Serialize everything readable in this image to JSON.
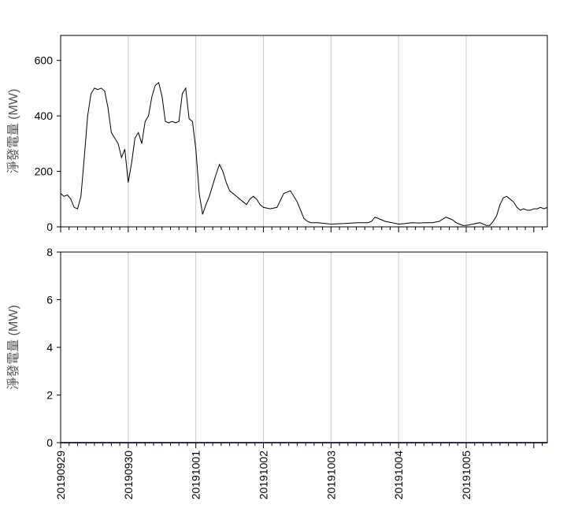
{
  "chart_data": [
    {
      "type": "line",
      "ylabel": "淨發電量 (MW)",
      "ylim": [
        0,
        690
      ],
      "yticks": [
        0,
        200,
        400,
        600
      ],
      "xlim": [
        0,
        7.2
      ],
      "xticks_major": [
        0,
        1,
        2,
        3,
        4,
        5,
        6
      ],
      "grid": "vertical",
      "series": [
        {
          "color": "#000000",
          "x": [
            0.0,
            0.05,
            0.1,
            0.15,
            0.2,
            0.25,
            0.3,
            0.35,
            0.4,
            0.45,
            0.5,
            0.55,
            0.6,
            0.65,
            0.7,
            0.75,
            0.8,
            0.85,
            0.9,
            0.95,
            1.0,
            1.05,
            1.1,
            1.15,
            1.2,
            1.25,
            1.3,
            1.35,
            1.4,
            1.45,
            1.5,
            1.55,
            1.6,
            1.65,
            1.7,
            1.75,
            1.8,
            1.85,
            1.9,
            1.95,
            2.0,
            2.05,
            2.1,
            2.15,
            2.2,
            2.25,
            2.3,
            2.35,
            2.4,
            2.45,
            2.5,
            2.55,
            2.6,
            2.65,
            2.7,
            2.75,
            2.8,
            2.85,
            2.9,
            2.95,
            3.0,
            3.1,
            3.2,
            3.3,
            3.4,
            3.5,
            3.6,
            3.65,
            3.7,
            3.8,
            4.0,
            4.2,
            4.4,
            4.5,
            4.55,
            4.6,
            4.65,
            4.7,
            4.8,
            4.9,
            5.0,
            5.1,
            5.2,
            5.3,
            5.4,
            5.5,
            5.6,
            5.7,
            5.75,
            5.8,
            5.85,
            5.9,
            5.95,
            6.0,
            6.1,
            6.2,
            6.3,
            6.35,
            6.4,
            6.45,
            6.5,
            6.55,
            6.6,
            6.65,
            6.7,
            6.75,
            6.8,
            6.85,
            6.9,
            6.95,
            7.0,
            7.05,
            7.1,
            7.15,
            7.2
          ],
          "values": [
            120,
            110,
            115,
            100,
            70,
            65,
            110,
            250,
            400,
            480,
            500,
            495,
            500,
            490,
            430,
            340,
            320,
            300,
            250,
            280,
            160,
            230,
            320,
            340,
            300,
            380,
            400,
            470,
            510,
            520,
            470,
            380,
            375,
            380,
            375,
            380,
            480,
            500,
            390,
            380,
            280,
            120,
            45,
            80,
            110,
            150,
            190,
            225,
            200,
            160,
            130,
            120,
            110,
            100,
            90,
            80,
            100,
            110,
            100,
            80,
            70,
            65,
            70,
            120,
            130,
            90,
            30,
            20,
            15,
            15,
            10,
            12,
            15,
            15,
            15,
            20,
            35,
            30,
            20,
            15,
            10,
            12,
            15,
            14,
            15,
            15,
            20,
            35,
            30,
            25,
            15,
            10,
            5,
            5,
            10,
            15,
            5,
            5,
            20,
            40,
            80,
            105,
            110,
            100,
            90,
            70,
            60,
            65,
            60,
            60,
            65,
            65,
            70,
            65,
            70
          ]
        }
      ]
    },
    {
      "type": "line",
      "ylabel": "淨發電量 (MW)",
      "ylim": [
        0,
        8
      ],
      "yticks": [
        0,
        2,
        4,
        6,
        8
      ],
      "xlim": [
        0,
        7.2
      ],
      "xticks_major": [
        0,
        1,
        2,
        3,
        4,
        5,
        6
      ],
      "xtick_labels": [
        "20190929",
        "20190930",
        "20191001",
        "20191002",
        "20191003",
        "20191004",
        "20191005"
      ],
      "grid": "vertical",
      "series": [
        {
          "color": "#5b5bb0",
          "x": [
            0,
            7.2
          ],
          "values": [
            0,
            0
          ]
        }
      ]
    }
  ]
}
